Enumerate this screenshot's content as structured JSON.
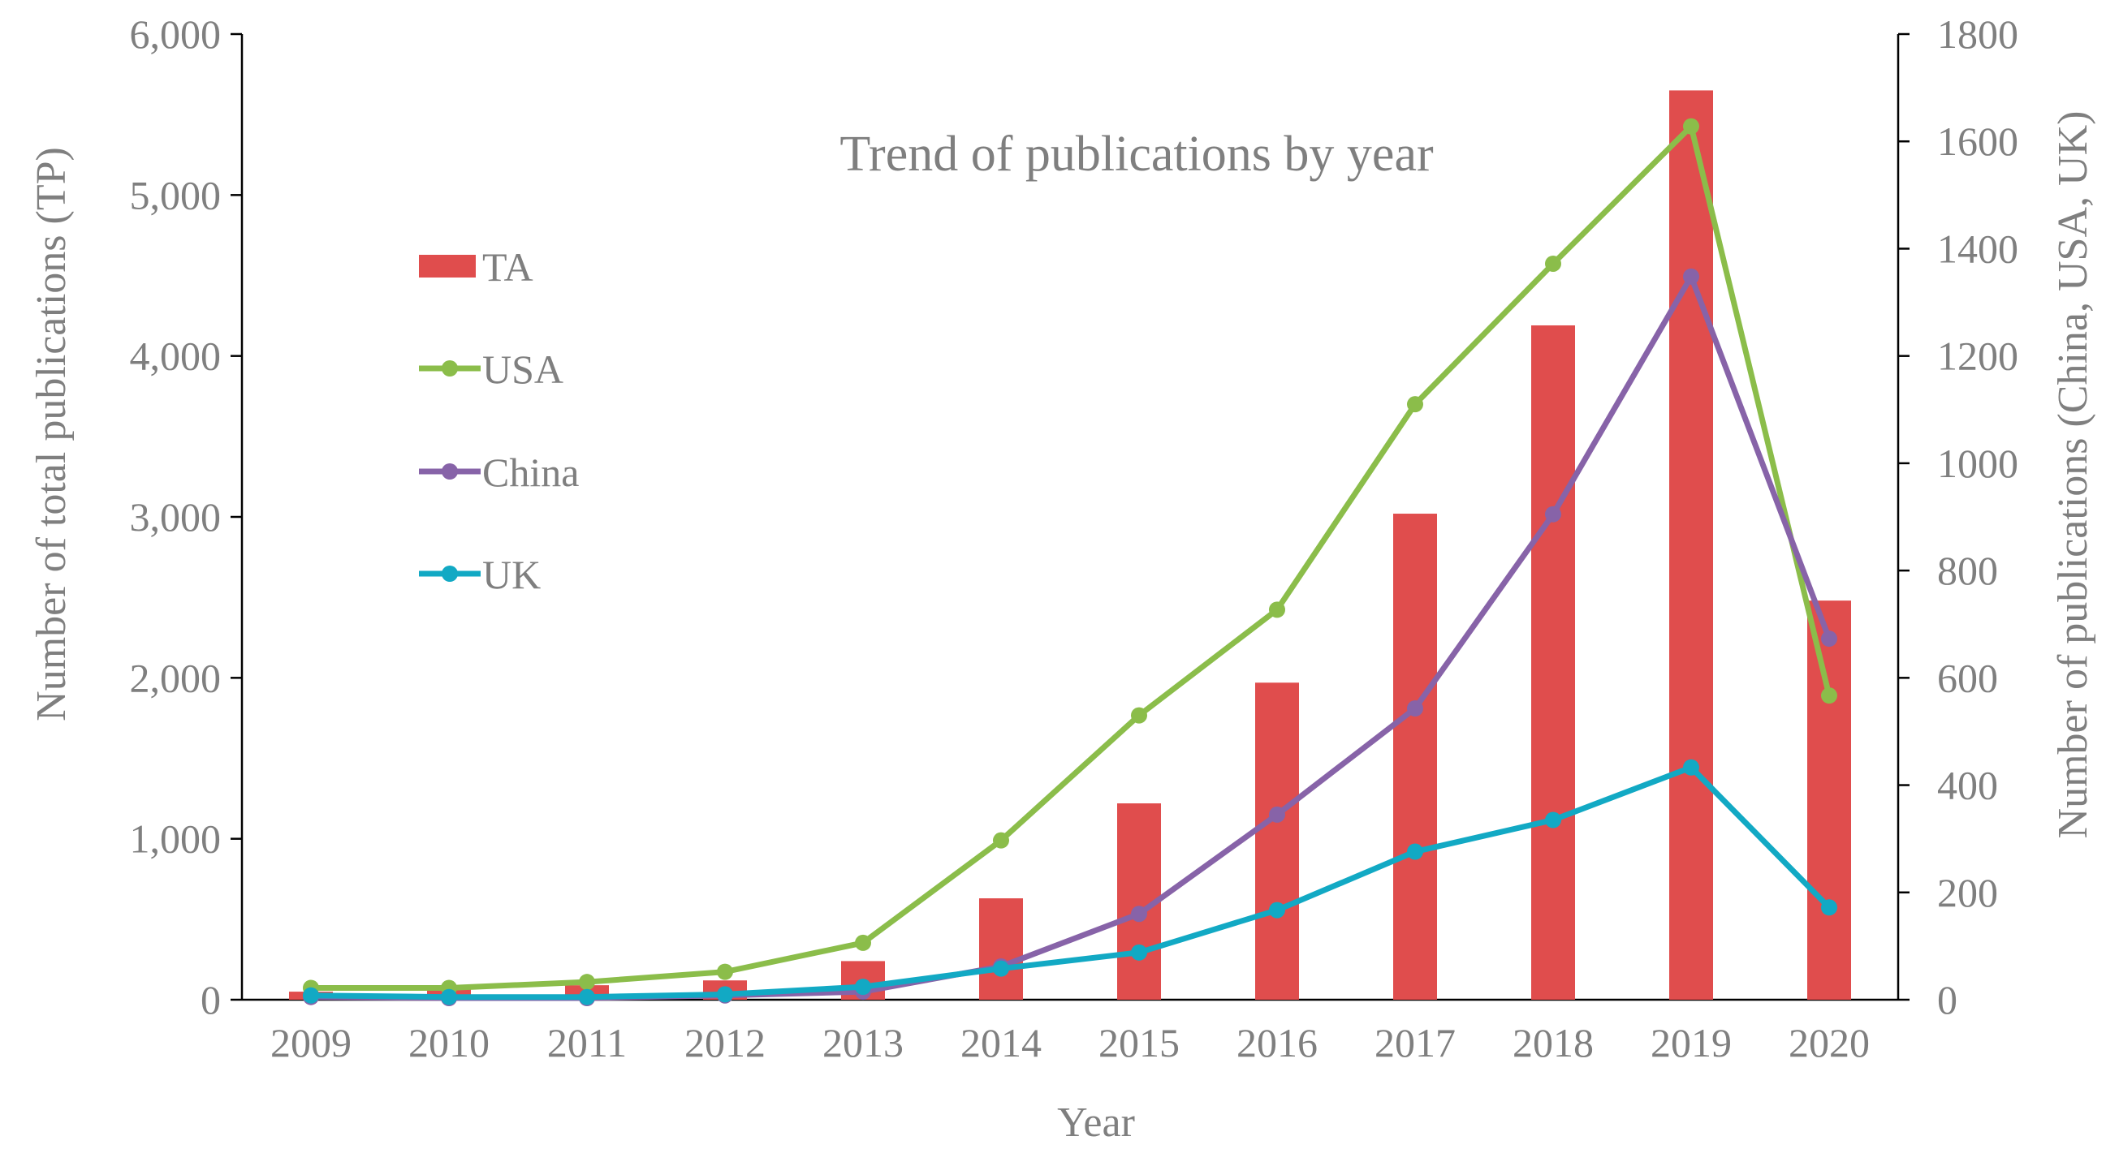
{
  "chart_data": {
    "type": "bar+line",
    "title": "Trend of  publications by year",
    "xlabel": "Year",
    "ylabel_left": "Number of total publications (TP)",
    "ylabel_right": "Number of publications (China, USA, UK)",
    "categories": [
      "2009",
      "2010",
      "2011",
      "2012",
      "2013",
      "2014",
      "2015",
      "2016",
      "2017",
      "2018",
      "2019",
      "2020"
    ],
    "ylim_left": [
      0,
      6000
    ],
    "yticks_left": [
      "0",
      "1,000",
      "2,000",
      "3,000",
      "4,000",
      "5,000",
      "6,000"
    ],
    "ylim_right": [
      0,
      1800
    ],
    "yticks_right": [
      "0",
      "200",
      "400",
      "600",
      "800",
      "1000",
      "1200",
      "1400",
      "1600",
      "1800"
    ],
    "grid": false,
    "legend_position": "upper-left",
    "series": [
      {
        "name": "TA",
        "kind": "bar",
        "axis": "left",
        "color": "#e04d4d",
        "values": [
          50,
          70,
          90,
          120,
          240,
          630,
          1220,
          1970,
          3020,
          4190,
          5650,
          2480
        ]
      },
      {
        "name": "USA",
        "kind": "line",
        "axis": "right",
        "color": "#8bbd4a",
        "values": [
          22,
          22,
          33,
          52,
          106,
          297,
          530,
          727,
          1110,
          1372,
          1628,
          567
        ]
      },
      {
        "name": "China",
        "kind": "line",
        "axis": "right",
        "color": "#8763a8",
        "values": [
          5,
          3,
          3,
          8,
          15,
          62,
          160,
          345,
          543,
          905,
          1348,
          673
        ]
      },
      {
        "name": "UK",
        "kind": "line",
        "axis": "right",
        "color": "#12a9c4",
        "values": [
          8,
          5,
          5,
          10,
          24,
          58,
          88,
          167,
          276,
          335,
          433,
          172
        ]
      }
    ]
  }
}
